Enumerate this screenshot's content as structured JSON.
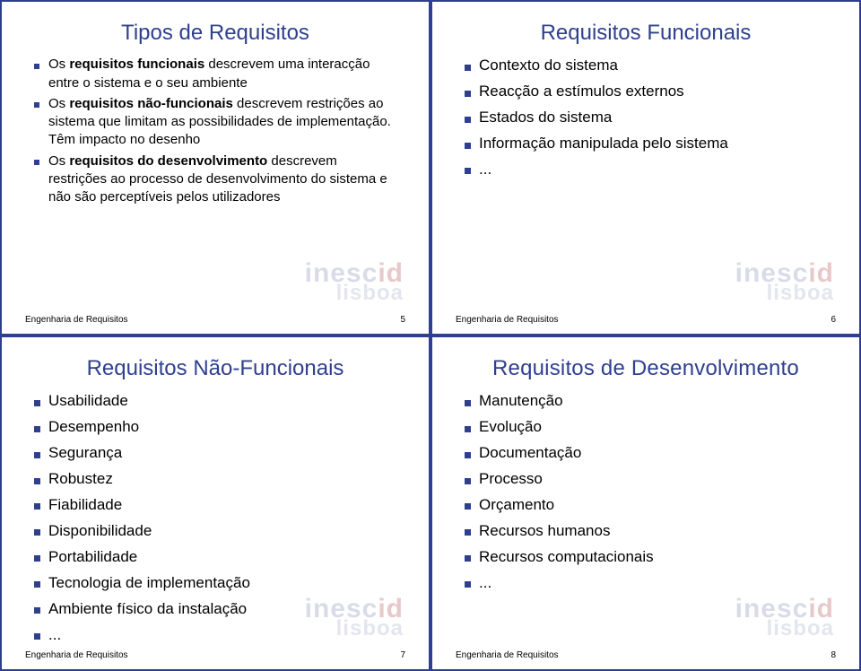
{
  "colors": {
    "accent": "#2f3f8f",
    "text": "#000000",
    "bg": "#ffffff",
    "watermark_main": "#d9dbe8",
    "watermark_dot": "#e8c9c9",
    "watermark_sub": "#e4e5ee"
  },
  "typography": {
    "title_fontsize": 24,
    "bullet_fontsize": 17,
    "bullet_small_fontsize": 15,
    "footer_fontsize": 10
  },
  "watermark": {
    "top": "inesc",
    "dot": "id",
    "bottom": "lisboa"
  },
  "footer_label": "Engenharia de Requisitos",
  "slides": [
    {
      "title": "Tipos de Requisitos",
      "page": "5",
      "items": [
        {
          "prefix": "Os ",
          "bold": "requisitos funcionais",
          "suffix": " descrevem uma interacção entre o sistema e o seu ambiente"
        },
        {
          "prefix": "Os ",
          "bold": "requisitos não-funcionais",
          "suffix": " descrevem restrições ao sistema que limitam as possibilidades de implementação. Têm impacto no desenho"
        },
        {
          "prefix": "Os ",
          "bold": "requisitos do desenvolvimento",
          "suffix": " descrevem restrições ao processo de desenvolvimento do sistema e não são perceptíveis pelos utilizadores"
        }
      ]
    },
    {
      "title": "Requisitos Funcionais",
      "page": "6",
      "items": [
        {
          "text": "Contexto do sistema"
        },
        {
          "text": "Reacção a estímulos externos"
        },
        {
          "text": "Estados do sistema"
        },
        {
          "text": "Informação manipulada pelo sistema"
        },
        {
          "text": "..."
        }
      ]
    },
    {
      "title": "Requisitos Não-Funcionais",
      "page": "7",
      "items": [
        {
          "text": "Usabilidade"
        },
        {
          "text": "Desempenho"
        },
        {
          "text": "Segurança"
        },
        {
          "text": "Robustez"
        },
        {
          "text": "Fiabilidade"
        },
        {
          "text": "Disponibilidade"
        },
        {
          "text": "Portabilidade"
        },
        {
          "text": "Tecnologia de implementação"
        },
        {
          "text": "Ambiente físico da instalação"
        },
        {
          "text": "..."
        }
      ]
    },
    {
      "title": "Requisitos de Desenvolvimento",
      "page": "8",
      "items": [
        {
          "text": "Manutenção"
        },
        {
          "text": "Evolução"
        },
        {
          "text": "Documentação"
        },
        {
          "text": "Processo"
        },
        {
          "text": "Orçamento"
        },
        {
          "text": "Recursos humanos"
        },
        {
          "text": "Recursos computacionais"
        },
        {
          "text": "..."
        }
      ]
    }
  ]
}
